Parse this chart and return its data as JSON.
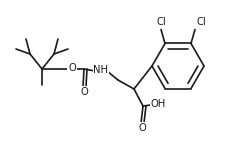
{
  "bg_color": "#ffffff",
  "line_color": "#1a1a1a",
  "line_width": 1.2,
  "font_size": 7.2,
  "figsize": [
    2.31,
    1.66
  ],
  "dpi": 100,
  "labels": {
    "O1": "O",
    "O2": "O",
    "O3": "O",
    "NH": "NH",
    "OH": "OH",
    "Cl1": "Cl",
    "Cl2": "Cl"
  }
}
